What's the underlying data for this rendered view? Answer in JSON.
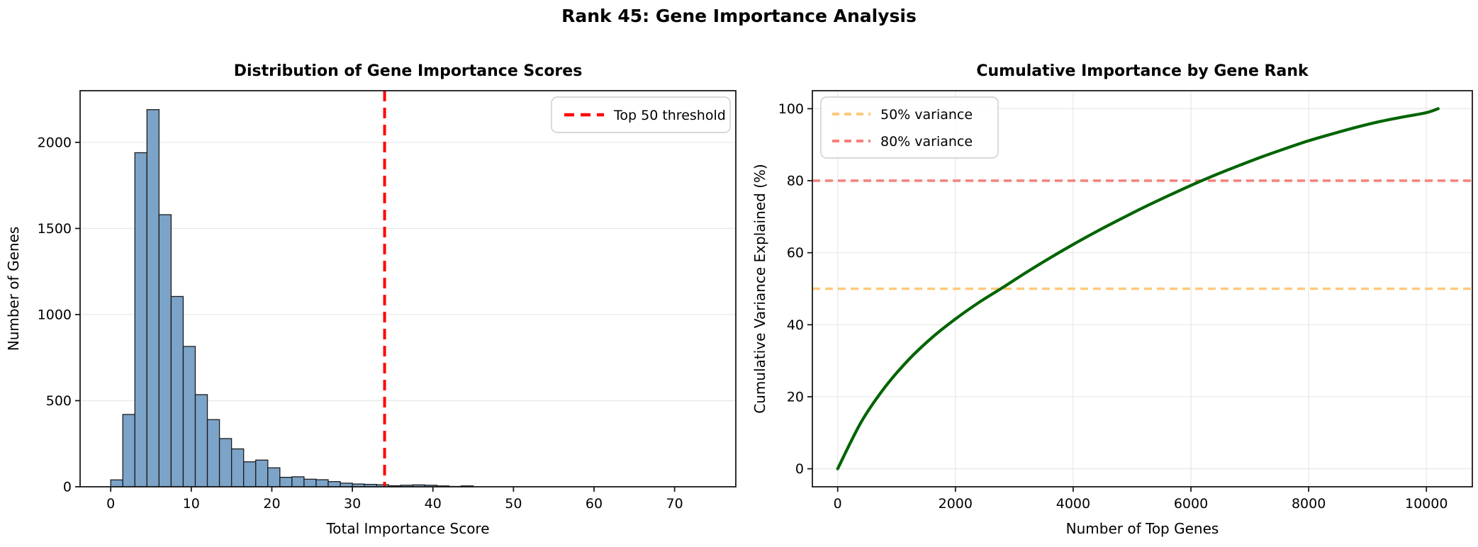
{
  "figure": {
    "title": "Rank 45: Gene Importance Analysis",
    "background_color": "#ffffff"
  },
  "chart_data": [
    {
      "type": "bar",
      "subtype": "histogram",
      "title": "Distribution of Gene Importance Scores",
      "xlabel": "Total Importance Score",
      "ylabel": "Number of Genes",
      "bin_start": 0,
      "bin_width": 1.5,
      "counts": [
        40,
        420,
        1940,
        2190,
        1580,
        1105,
        815,
        535,
        390,
        280,
        220,
        145,
        155,
        110,
        55,
        58,
        44,
        41,
        30,
        21,
        16,
        14,
        12,
        6,
        9,
        11,
        9,
        5,
        2,
        5
      ],
      "bar_color": "#7ca3c8",
      "bar_edge_color": "#1c1c1c",
      "threshold": {
        "value": 34,
        "label": "Top 50 threshold",
        "color": "#ff0000"
      },
      "xlim": [
        -3.8,
        77.6
      ],
      "ylim": [
        0,
        2300
      ],
      "xticks": [
        0,
        10,
        20,
        30,
        40,
        50,
        60,
        70
      ],
      "yticks": [
        0,
        500,
        1000,
        1500,
        2000
      ],
      "grid": "y",
      "legend_position": "top-right"
    },
    {
      "type": "line",
      "title": "Cumulative Importance by Gene Rank",
      "xlabel": "Number of Top Genes",
      "ylabel": "Cumulative Variance Explained (%)",
      "x": [
        0,
        400,
        800,
        1200,
        1600,
        2000,
        2400,
        2800,
        3200,
        3600,
        4000,
        4400,
        4800,
        5200,
        5600,
        6000,
        6400,
        6800,
        7200,
        7600,
        8000,
        8400,
        8800,
        9200,
        9600,
        10000,
        10200
      ],
      "y": [
        0,
        13.0,
        22.6,
        30.2,
        36.4,
        41.6,
        46.2,
        50.3,
        54.5,
        58.5,
        62.3,
        65.9,
        69.3,
        72.6,
        75.7,
        78.7,
        81.5,
        84.1,
        86.6,
        88.9,
        91.1,
        93.0,
        94.8,
        96.4,
        97.7,
        98.9,
        100
      ],
      "line_color": "#006400",
      "hlines": [
        {
          "y": 50,
          "label": "50% variance",
          "color": "#ffc97c"
        },
        {
          "y": 80,
          "label": "80% variance",
          "color": "#f6807b"
        }
      ],
      "xlim": [
        -430,
        10780
      ],
      "ylim": [
        -5,
        105
      ],
      "xticks": [
        0,
        2000,
        4000,
        6000,
        8000,
        10000
      ],
      "yticks": [
        0,
        20,
        40,
        60,
        80,
        100
      ],
      "grid": "both",
      "legend_position": "top-left"
    }
  ],
  "style": {
    "grid_color": "#e7e7e7",
    "spine_color": "#1a1a1a",
    "text_color": "#000000"
  }
}
